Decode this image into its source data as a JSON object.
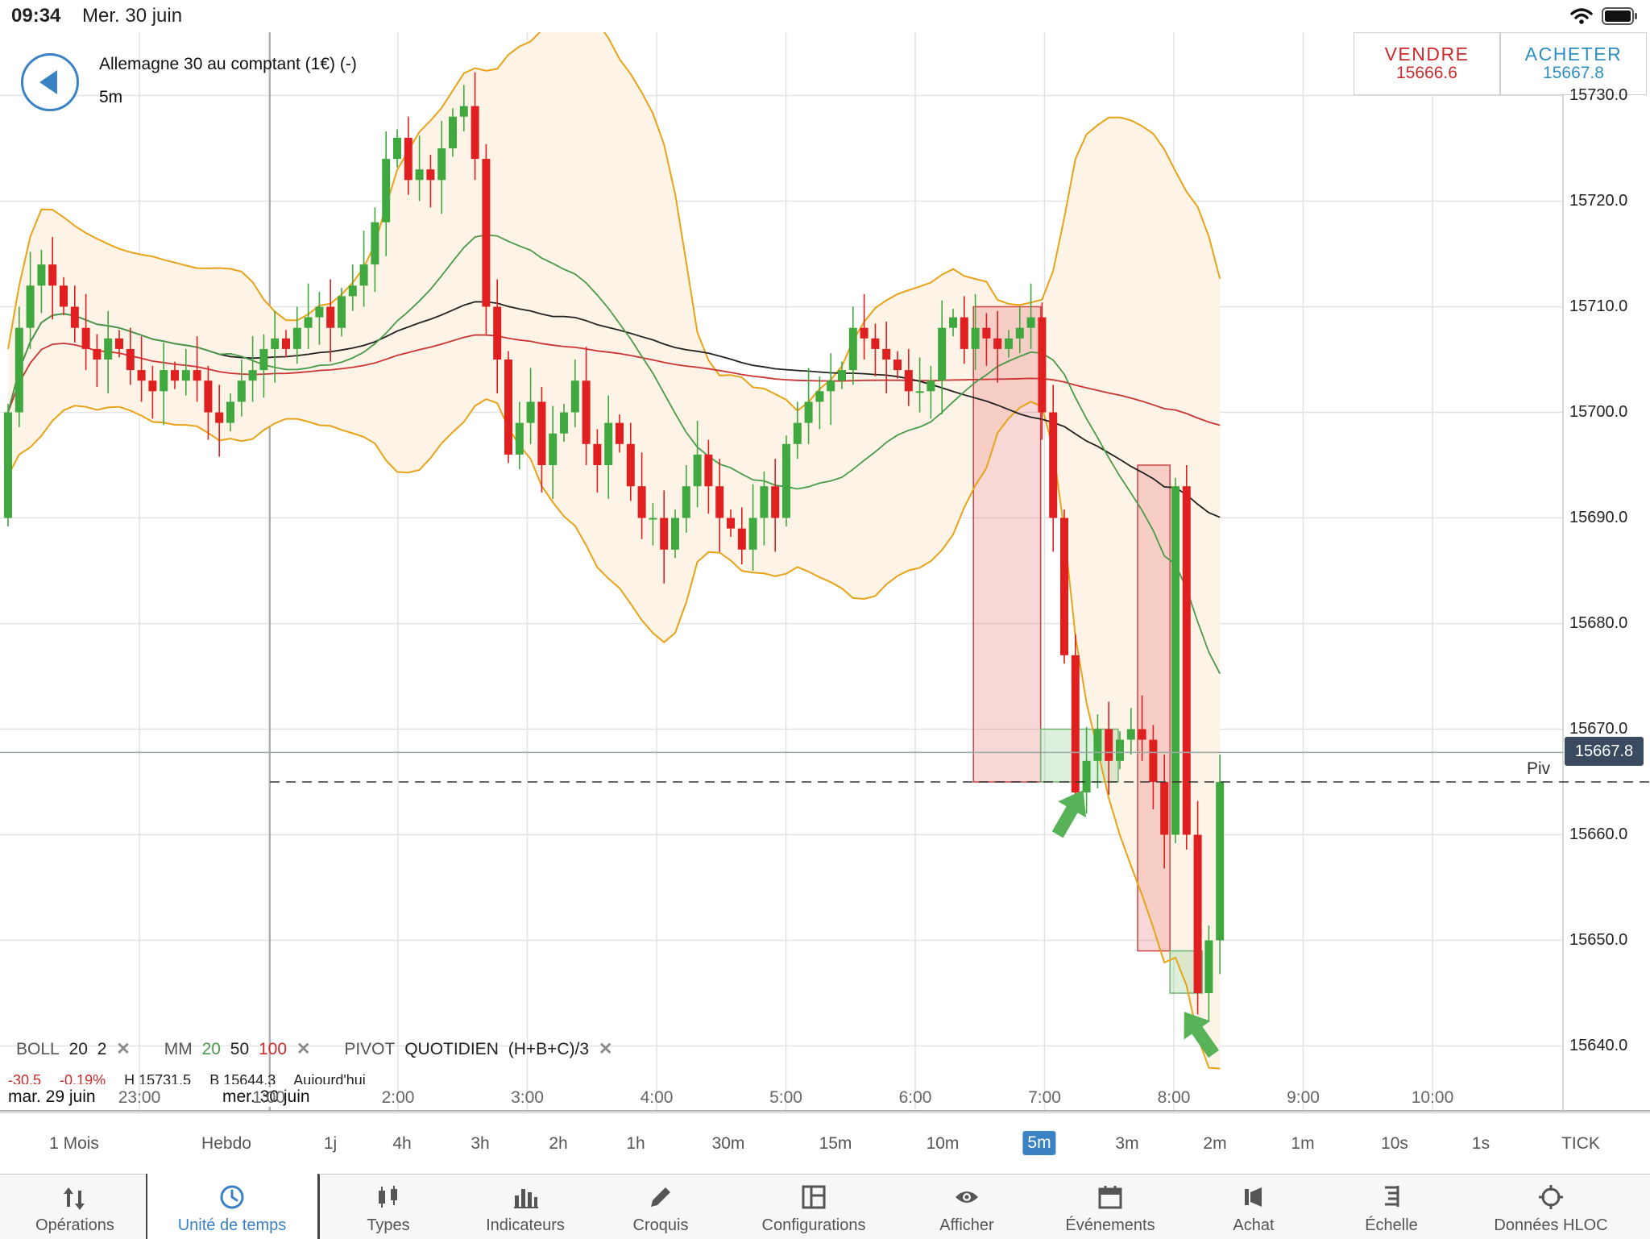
{
  "status_bar": {
    "time": "09:34",
    "date": "Mer. 30 juin"
  },
  "instrument": {
    "title": "Allemagne 30 au comptant (1€) (-)",
    "timeframe": "5m"
  },
  "trade": {
    "sell_label": "VENDRE",
    "sell_price": "15666.6",
    "buy_label": "ACHETER",
    "buy_price": "15667.8"
  },
  "price_axis": {
    "ticks": [
      "15640.0",
      "15650.0",
      "15660.0",
      "15670.0",
      "15680.0",
      "15690.0",
      "15700.0",
      "15710.0",
      "15720.0",
      "15730.0"
    ],
    "current_price": "15667.8",
    "pivot_label": "Piv"
  },
  "time_axis": {
    "date_left": "mar. 29 juin",
    "date_right": "mer. 30 juin",
    "ticks": [
      "23:00",
      "1:00",
      "2:00",
      "3:00",
      "4:00",
      "5:00",
      "6:00",
      "7:00",
      "8:00",
      "9:00",
      "10:00"
    ]
  },
  "legend": {
    "boll_label": "BOLL",
    "boll_period": "20",
    "boll_dev": "2",
    "ma_label": "MM",
    "ma_20": "20",
    "ma_50": "50",
    "ma_100": "100",
    "pivot_label": "PIVOT",
    "pivot_type": "QUOTIDIEN",
    "pivot_formula": "(H+B+C)/3"
  },
  "stats": {
    "change": "-30.5",
    "change_pct": "-0.19%",
    "high": "H 15731.5",
    "low": "B 15644.3",
    "period": "Aujourd'hui"
  },
  "timeframes": [
    "1 Mois",
    "Hebdo",
    "1j",
    "4h",
    "3h",
    "2h",
    "1h",
    "30m",
    "15m",
    "10m",
    "5m",
    "3m",
    "2m",
    "1m",
    "10s",
    "1s",
    "TICK"
  ],
  "active_timeframe": "5m",
  "toolbar": [
    {
      "label": "Opérations",
      "icon": "arrows-updown-icon"
    },
    {
      "label": "Unité de temps",
      "icon": "clock-icon"
    },
    {
      "label": "Types",
      "icon": "candlestick-icon"
    },
    {
      "label": "Indicateurs",
      "icon": "bar-chart-icon"
    },
    {
      "label": "Croquis",
      "icon": "pencil-icon"
    },
    {
      "label": "Configurations",
      "icon": "layout-icon"
    },
    {
      "label": "Afficher",
      "icon": "eye-icon"
    },
    {
      "label": "Événements",
      "icon": "calendar-icon"
    },
    {
      "label": "Achat",
      "icon": "bell-icon"
    },
    {
      "label": "Échelle",
      "icon": "scale-icon"
    },
    {
      "label": "Données HLOC",
      "icon": "crosshair-icon"
    }
  ],
  "colors": {
    "up": "#3fa83f",
    "down": "#e02020",
    "boll": "#e8a317",
    "boll_fill": "#fdf3e6",
    "ma20": "#4a9a4a",
    "ma50": "#222222",
    "ma100": "#cc3333",
    "accent": "#3b82c4"
  },
  "chart_data": {
    "type": "candlestick",
    "interval": "5m",
    "y_range": [
      15636,
      15744
    ],
    "x_ticks": [
      "23:00",
      "1:00",
      "2:00",
      "3:00",
      "4:00",
      "5:00",
      "6:00",
      "7:00",
      "8:00",
      "9:00",
      "10:00"
    ],
    "current_price": 15667.8,
    "pivot": 15665,
    "indicators": [
      "BOLL 20 2",
      "MM 20",
      "MM 50",
      "MM 100",
      "PIVOT QUOTIDIEN (H+B+C)/3"
    ],
    "closes": [
      15700,
      15708,
      15712,
      15714,
      15712,
      15710,
      15708,
      15706,
      15705,
      15707,
      15706,
      15704,
      15703,
      15702,
      15704,
      15703,
      15704,
      15703,
      15700,
      15699,
      15701,
      15703,
      15704,
      15706,
      15707,
      15706,
      15708,
      15709,
      15710,
      15708,
      15711,
      15712,
      15714,
      15718,
      15724,
      15726,
      15722,
      15723,
      15722,
      15725,
      15728,
      15729,
      15724,
      15710,
      15705,
      15696,
      15699,
      15701,
      15695,
      15698,
      15700,
      15703,
      15697,
      15695,
      15699,
      15697,
      15693,
      15690,
      15690,
      15687,
      15690,
      15693,
      15696,
      15693,
      15690,
      15689,
      15687,
      15690,
      15693,
      15690,
      15697,
      15699,
      15701,
      15702,
      15703,
      15704,
      15708,
      15707,
      15706,
      15705,
      15704,
      15702,
      15702,
      15703,
      15708,
      15709,
      15706,
      15708,
      15707,
      15706,
      15707,
      15708,
      15709,
      15700,
      15690,
      15677,
      15664,
      15667,
      15670,
      15667,
      15669,
      15670,
      15669,
      15665,
      15660,
      15693,
      15660,
      15645,
      15650,
      15665
    ],
    "rects": [
      {
        "x0": 14.45,
        "x1": 14.97,
        "y0": 15665,
        "y1": 15710,
        "color": "red"
      },
      {
        "x0": 15.72,
        "x1": 15.97,
        "y0": 15649,
        "y1": 15695,
        "color": "red"
      },
      {
        "x0": 14.97,
        "x1": 15.57,
        "y0": 15665,
        "y1": 15670,
        "color": "green"
      },
      {
        "x0": 15.97,
        "x1": 16.22,
        "y0": 15645,
        "y1": 15649,
        "color": "green"
      }
    ],
    "arrows": [
      {
        "x": 15.3,
        "y": 15665,
        "dir": "up-right"
      },
      {
        "x": 16.08,
        "y": 15644,
        "dir": "up-left"
      }
    ]
  }
}
